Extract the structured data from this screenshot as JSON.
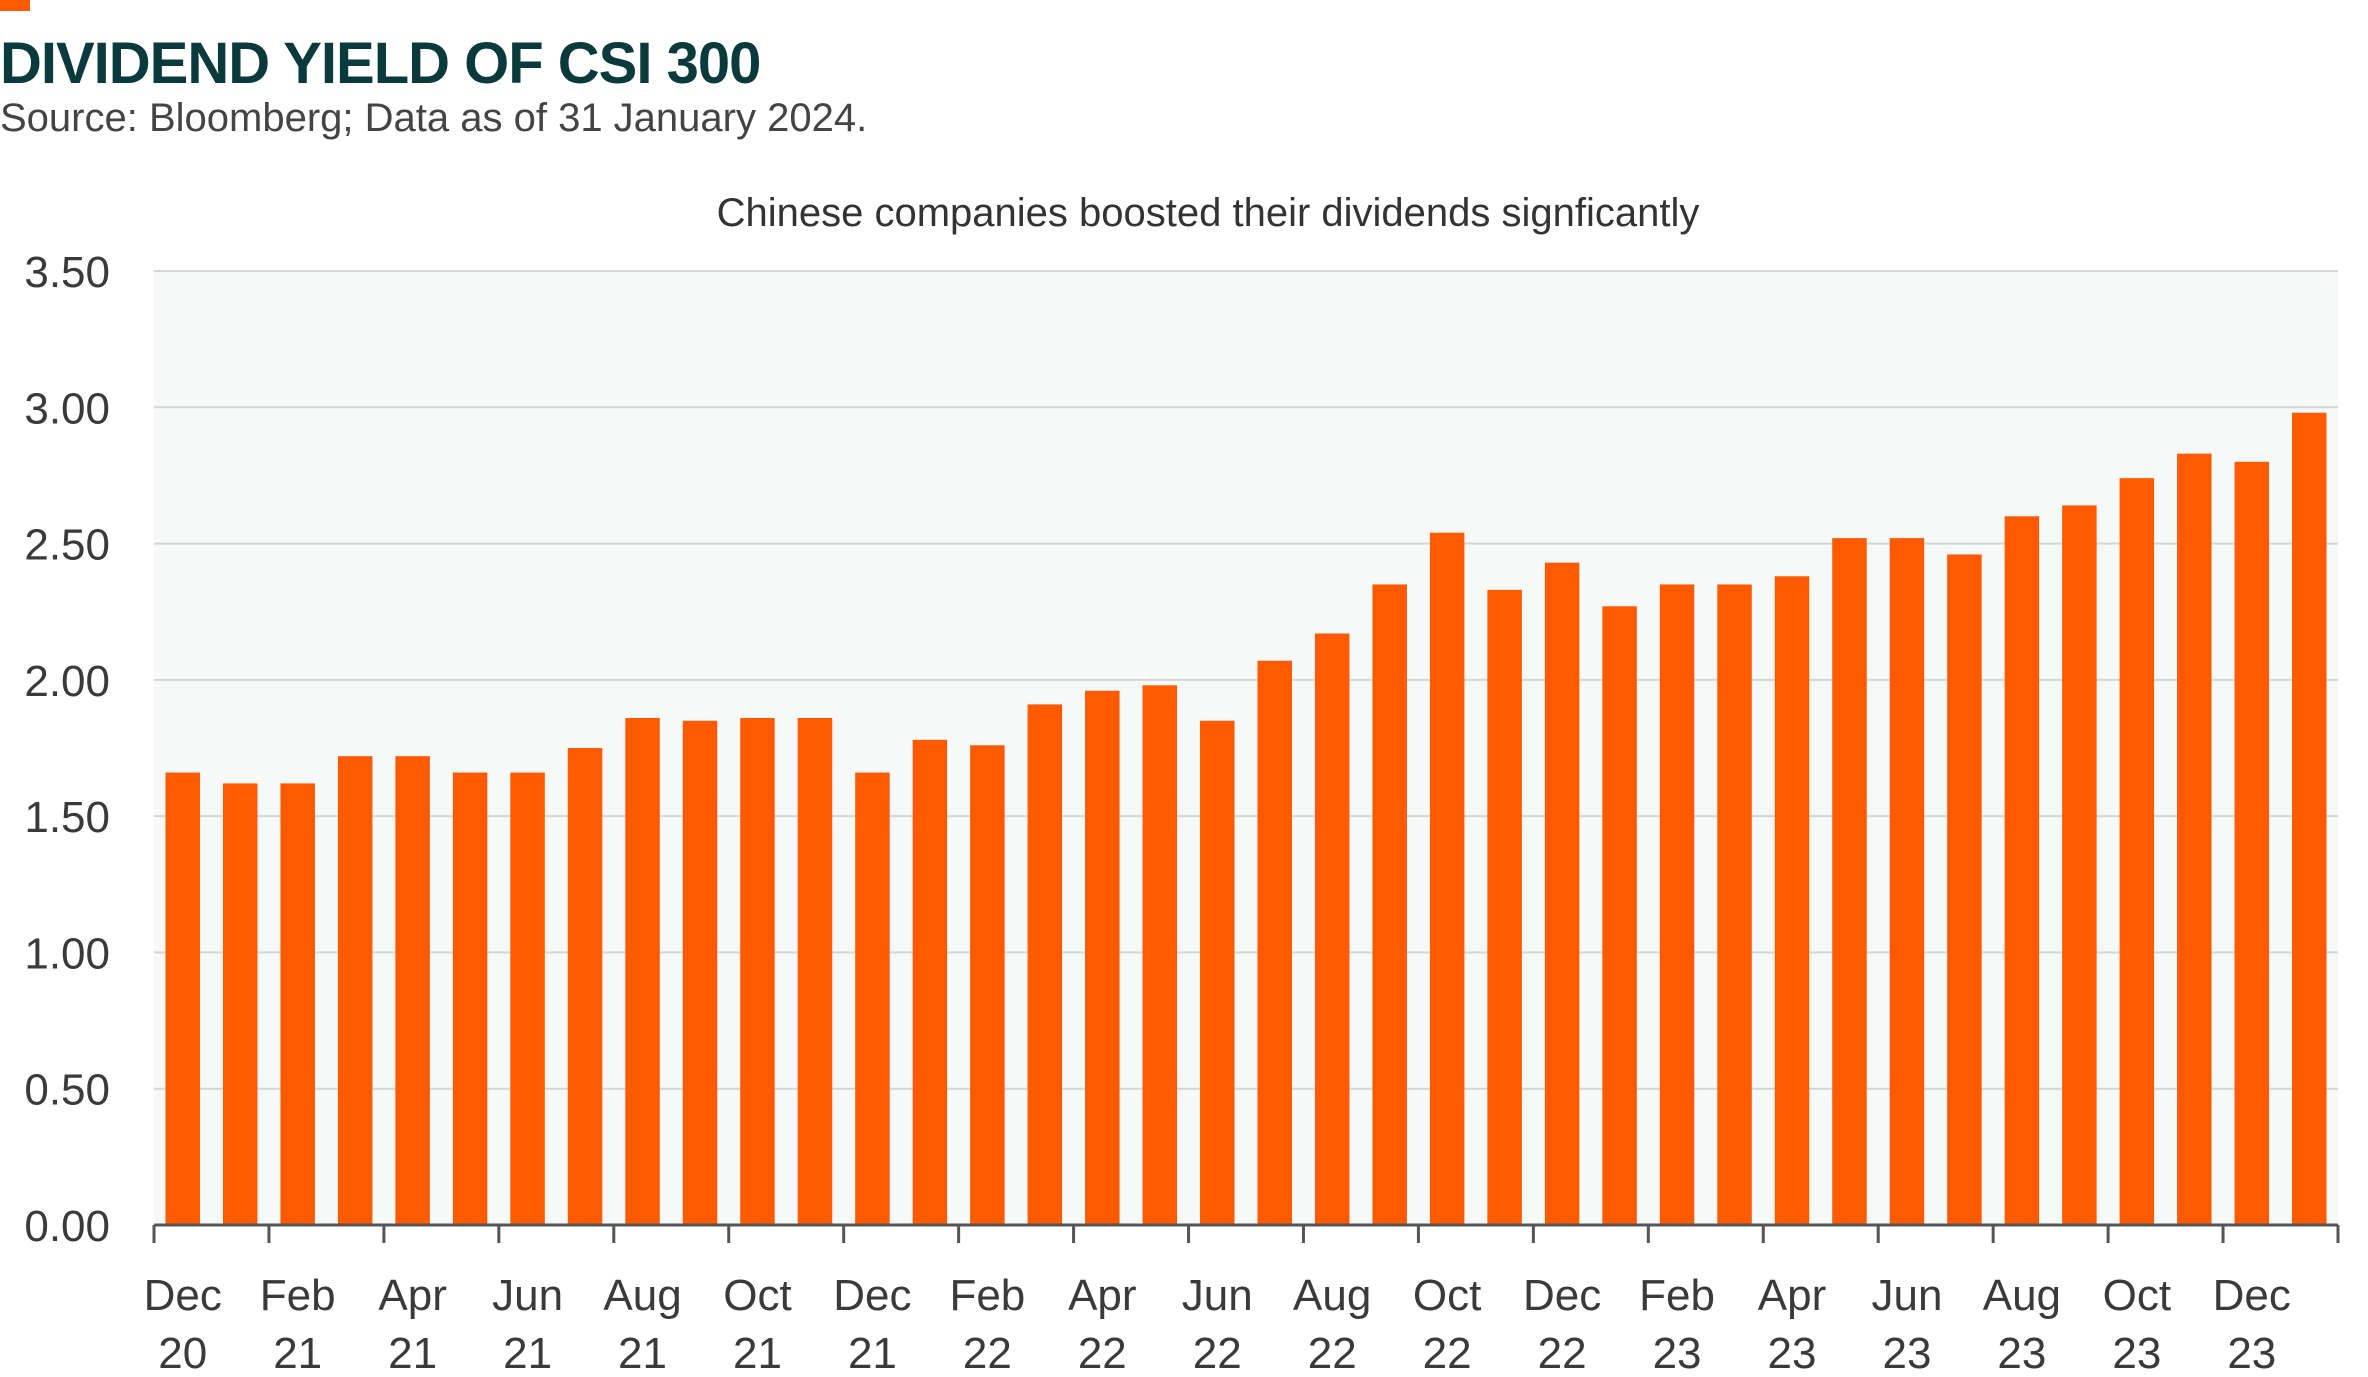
{
  "header": {
    "title": "DIVIDEND YIELD OF CSI 300",
    "source": "Source: Bloomberg; Data as of 31 January 2024."
  },
  "colors": {
    "bar": "#ff5a00",
    "title": "#0b3a3c",
    "plot_background": "#f7f8f8",
    "gridline": "#d4d6d6",
    "axis": "#555555"
  },
  "chart_data": {
    "type": "bar",
    "title": "DIVIDEND YIELD OF CSI 300",
    "subtitle": "Chinese companies boosted their dividends signficantly",
    "xlabel": "",
    "ylabel": "",
    "ylim": [
      0,
      3.5
    ],
    "yticks": [
      "0.00",
      "0.50",
      "1.00",
      "1.50",
      "2.00",
      "2.50",
      "3.00",
      "3.50"
    ],
    "grid": true,
    "legend": "none",
    "x_tick_labels": [
      [
        "Dec",
        "20"
      ],
      [
        "Feb",
        "21"
      ],
      [
        "Apr",
        "21"
      ],
      [
        "Jun",
        "21"
      ],
      [
        "Aug",
        "21"
      ],
      [
        "Oct",
        "21"
      ],
      [
        "Dec",
        "21"
      ],
      [
        "Feb",
        "22"
      ],
      [
        "Apr",
        "22"
      ],
      [
        "Jun",
        "22"
      ],
      [
        "Aug",
        "22"
      ],
      [
        "Oct",
        "22"
      ],
      [
        "Dec",
        "22"
      ],
      [
        "Feb",
        "23"
      ],
      [
        "Apr",
        "23"
      ],
      [
        "Jun",
        "23"
      ],
      [
        "Aug",
        "23"
      ],
      [
        "Oct",
        "23"
      ],
      [
        "Dec",
        "23"
      ]
    ],
    "categories": [
      "Dec 20",
      "Jan 21",
      "Feb 21",
      "Mar 21",
      "Apr 21",
      "May 21",
      "Jun 21",
      "Jul 21",
      "Aug 21",
      "Sep 21",
      "Oct 21",
      "Nov 21",
      "Dec 21",
      "Jan 22",
      "Feb 22",
      "Mar 22",
      "Apr 22",
      "May 22",
      "Jun 22",
      "Jul 22",
      "Aug 22",
      "Sep 22",
      "Oct 22",
      "Nov 22",
      "Dec 22",
      "Jan 23",
      "Feb 23",
      "Mar 23",
      "Apr 23",
      "May 23",
      "Jun 23",
      "Jul 23",
      "Aug 23",
      "Sep 23",
      "Oct 23",
      "Nov 23",
      "Dec 23",
      "Jan 24"
    ],
    "values": [
      1.66,
      1.62,
      1.62,
      1.72,
      1.72,
      1.66,
      1.66,
      1.75,
      1.86,
      1.85,
      1.86,
      1.86,
      1.66,
      1.78,
      1.76,
      1.91,
      1.96,
      1.98,
      1.85,
      2.07,
      2.17,
      2.35,
      2.54,
      2.33,
      2.43,
      2.27,
      2.35,
      2.35,
      2.38,
      2.52,
      2.52,
      2.46,
      2.6,
      2.64,
      2.74,
      2.83,
      2.8,
      2.98
    ]
  }
}
